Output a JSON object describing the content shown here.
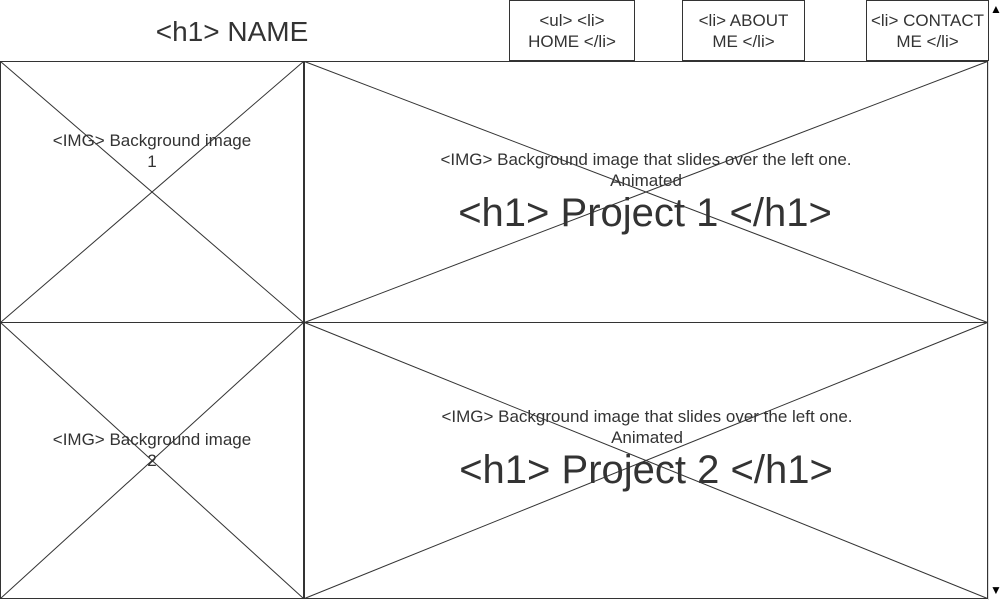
{
  "header": {
    "name_heading": "<h1> NAME"
  },
  "nav": {
    "items": [
      {
        "label": "<ul> <li> HOME </li>"
      },
      {
        "label": "<li> ABOUT ME </li>"
      },
      {
        "label": "<li> CONTACT ME </li>"
      }
    ]
  },
  "rows": [
    {
      "left_image_label": "<IMG> Background image 1",
      "right_image_label": "<IMG> Background image that slides over the left one. Animated",
      "project_heading": "<h1> Project 1 </h1>"
    },
    {
      "left_image_label": "<IMG> Background image 2",
      "right_image_label": "<IMG> Background image that slides over the left one. Animated",
      "project_heading": "<h1> Project 2 </h1>"
    }
  ],
  "scrollbar": {
    "up_glyph": "▲",
    "down_glyph": "▼"
  }
}
